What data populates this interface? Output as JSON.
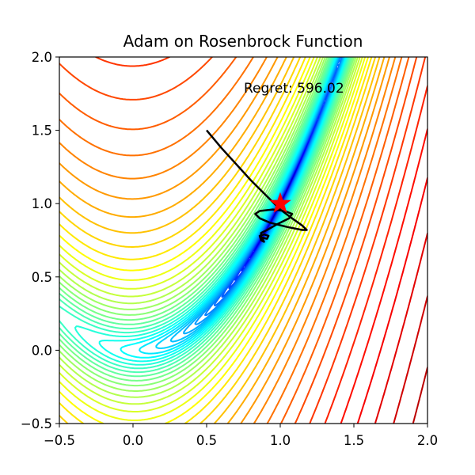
{
  "chart_data": {
    "type": "contour",
    "title": "Adam on Rosenbrock Function",
    "function": "rosenbrock",
    "a": 1,
    "b": 100,
    "xlim": [
      -0.5,
      2.0
    ],
    "ylim": [
      -0.5,
      2.0
    ],
    "xticks": [
      -0.5,
      0.0,
      0.5,
      1.0,
      1.5,
      2.0
    ],
    "yticks": [
      -0.5,
      0.0,
      0.5,
      1.0,
      1.5,
      2.0
    ],
    "xtick_labels": [
      "−0.5",
      "0.0",
      "0.5",
      "1.0",
      "1.5",
      "2.0"
    ],
    "ytick_labels": [
      "−0.5",
      "0.0",
      "0.5",
      "1.0",
      "1.5",
      "2.0"
    ],
    "colormap": "jet",
    "contour_scale": "log",
    "grid": false,
    "annotation": "Regret: 596.02",
    "optimum": {
      "x": 1.0,
      "y": 1.0,
      "marker": "star",
      "color": "#ff0000"
    },
    "optimizer_path": {
      "name": "Adam",
      "color": "#000000",
      "points": [
        [
          0.5,
          1.5
        ],
        [
          0.6,
          1.38
        ],
        [
          0.7,
          1.27
        ],
        [
          0.8,
          1.16
        ],
        [
          0.9,
          1.06
        ],
        [
          1.0,
          0.96
        ],
        [
          1.08,
          0.9
        ],
        [
          1.15,
          0.85
        ],
        [
          1.18,
          0.82
        ],
        [
          1.15,
          0.82
        ],
        [
          1.05,
          0.84
        ],
        [
          0.93,
          0.87
        ],
        [
          0.86,
          0.9
        ],
        [
          0.83,
          0.93
        ],
        [
          0.86,
          0.95
        ],
        [
          0.95,
          0.96
        ],
        [
          1.03,
          0.95
        ],
        [
          1.08,
          0.93
        ],
        [
          1.06,
          0.9
        ],
        [
          0.98,
          0.86
        ],
        [
          0.91,
          0.82
        ],
        [
          0.87,
          0.8
        ],
        [
          0.87,
          0.77
        ],
        [
          0.91,
          0.76
        ],
        [
          0.92,
          0.78
        ],
        [
          0.89,
          0.79
        ],
        [
          0.86,
          0.78
        ],
        [
          0.87,
          0.75
        ],
        [
          0.89,
          0.74
        ],
        [
          0.88,
          0.76
        ],
        [
          0.86,
          0.77
        ]
      ]
    }
  }
}
